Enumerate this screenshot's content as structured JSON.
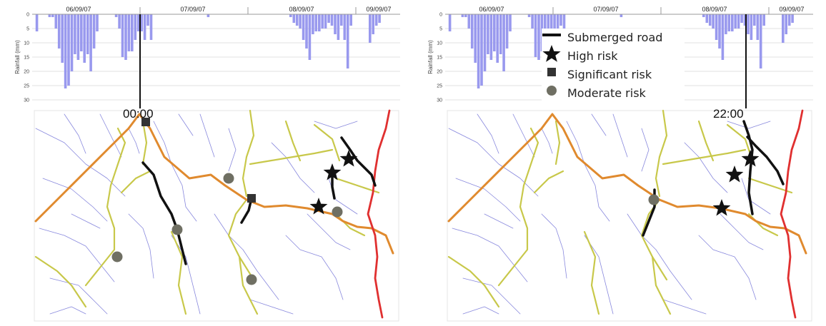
{
  "rainfall": {
    "ylabel": "Rainfall (mm)",
    "yticks": [
      "0",
      "5",
      "10",
      "15",
      "20",
      "25",
      "30"
    ],
    "ymax": 30,
    "dates": [
      "06/09/07",
      "07/09/07",
      "08/09/07",
      "09/09/07"
    ],
    "bar_color": "#9999ee",
    "values": [
      0,
      6,
      0,
      0,
      0,
      1,
      1,
      5,
      12,
      17,
      26,
      25,
      20,
      14,
      16,
      13,
      17,
      14,
      20,
      12,
      6,
      0,
      0,
      0,
      0,
      0,
      1,
      5,
      15,
      16,
      13,
      13,
      9,
      6,
      6,
      9,
      4,
      9,
      0,
      0,
      0,
      0,
      0,
      0,
      0,
      0,
      0,
      0,
      0,
      0,
      0,
      0,
      0,
      0,
      0,
      1,
      0,
      0,
      0,
      0,
      0,
      0,
      0,
      0,
      0,
      0,
      0,
      0,
      0,
      0,
      0,
      0,
      0,
      0,
      0,
      0,
      0,
      0,
      0,
      0,
      0,
      1,
      3,
      4,
      5,
      9,
      12,
      16,
      7,
      6,
      6,
      5,
      5,
      3,
      4,
      7,
      9,
      4,
      9,
      19,
      4,
      0,
      0,
      0,
      0,
      0,
      10,
      7,
      4,
      3,
      0,
      0,
      0,
      0,
      0,
      0
    ]
  },
  "panels": [
    {
      "time": "00:00",
      "show_legend": false,
      "marker_positions_note": ""
    },
    {
      "time": "22:00",
      "show_legend": true
    }
  ],
  "legend": {
    "items": [
      {
        "symbol": "line",
        "label": "Submerged road"
      },
      {
        "symbol": "star",
        "label": "High risk"
      },
      {
        "symbol": "square",
        "label": "Significant risk"
      },
      {
        "symbol": "circle",
        "label": "Moderate risk"
      }
    ]
  },
  "colors": {
    "river": "#8888dd",
    "minor_road": "#c8c84a",
    "major_road": "#e08a2e",
    "highway": "#e03030",
    "submerged": "#111111",
    "moderate_marker": "#6f6f63"
  }
}
